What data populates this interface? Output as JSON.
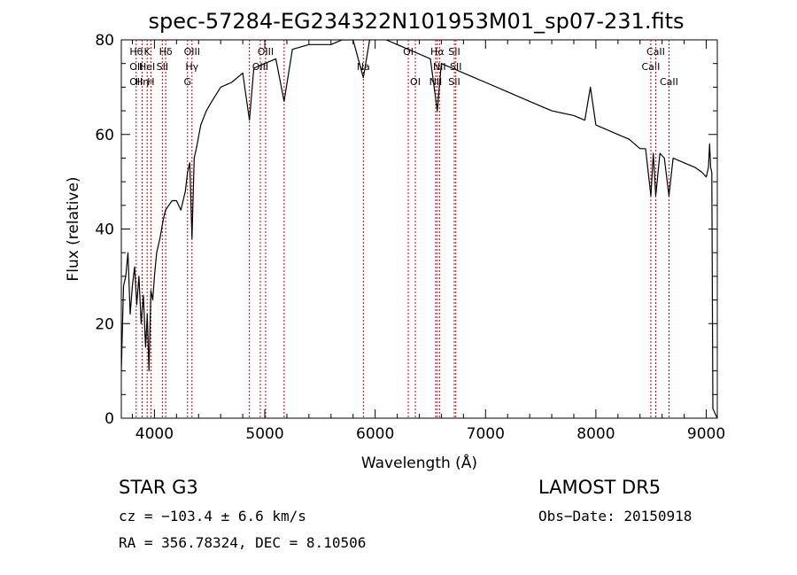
{
  "chart_data": {
    "type": "line",
    "title": "spec-57284-EG234322N101953M01_sp07-231.fits",
    "xlabel": "Wavelength (Å)",
    "ylabel": "Flux (relative)",
    "xlim": [
      3700,
      9100
    ],
    "ylim": [
      0,
      80
    ],
    "xticks": [
      4000,
      5000,
      6000,
      7000,
      8000,
      9000
    ],
    "yticks": [
      0,
      20,
      40,
      60,
      80
    ],
    "grid": false,
    "line_color": "#000000",
    "marker_color": "#cc0000",
    "series": [
      {
        "x": [
          3700,
          3720,
          3740,
          3760,
          3780,
          3800,
          3820,
          3840,
          3860,
          3880,
          3900,
          3920,
          3935,
          3950,
          3968,
          3985,
          4000,
          4020,
          4050,
          4080,
          4100,
          4130,
          4160,
          4200,
          4240,
          4280,
          4300,
          4320,
          4340,
          4360,
          4380,
          4420,
          4470,
          4520,
          4600,
          4700,
          4800,
          4861,
          4900,
          5000,
          5100,
          5175,
          5250,
          5400,
          5500,
          5600,
          5700,
          5800,
          5893,
          5950,
          6000,
          6100,
          6200,
          6300,
          6400,
          6500,
          6563,
          6600,
          6700,
          6800,
          6900,
          7000,
          7200,
          7400,
          7600,
          7800,
          7900,
          7950,
          8000,
          8100,
          8200,
          8300,
          8400,
          8450,
          8498,
          8520,
          8542,
          8580,
          8620,
          8662,
          8700,
          8800,
          8900,
          8960,
          9000,
          9020,
          9030,
          9040,
          9050,
          9060,
          9080,
          9100
        ],
        "y": [
          10,
          28,
          30,
          35,
          22,
          28,
          32,
          24,
          30,
          20,
          26,
          15,
          22,
          10,
          27,
          25,
          30,
          35,
          38,
          42,
          44,
          45,
          46,
          46,
          44,
          48,
          52,
          54,
          38,
          55,
          57,
          62,
          65,
          67,
          70,
          71,
          73,
          63,
          74,
          75,
          76,
          67,
          78,
          79,
          79,
          79,
          80,
          80,
          72,
          80,
          81,
          80,
          79,
          78,
          77,
          76,
          65,
          75,
          74,
          73,
          72,
          71,
          69,
          67,
          65,
          64,
          63,
          70,
          62,
          61,
          60,
          59,
          57,
          57,
          47,
          56,
          47,
          56,
          55,
          47,
          55,
          54,
          53,
          52,
          51,
          53,
          58,
          53,
          52,
          2,
          1,
          0
        ]
      }
    ],
    "line_markers": [
      {
        "x": 3835,
        "labels": [
          "Hθ",
          "OII",
          "OII"
        ]
      },
      {
        "x": 3889,
        "labels": [
          "",
          "",
          "Hη"
        ]
      },
      {
        "x": 3934,
        "labels": [
          "K",
          "HeI",
          ""
        ]
      },
      {
        "x": 3968,
        "labels": [
          "",
          "",
          "H"
        ]
      },
      {
        "x": 4072,
        "labels": [
          "",
          "SII",
          ""
        ]
      },
      {
        "x": 4102,
        "labels": [
          "Hδ",
          "",
          ""
        ]
      },
      {
        "x": 4300,
        "labels": [
          "",
          "",
          "G"
        ]
      },
      {
        "x": 4340,
        "labels": [
          "OIII",
          "Hγ",
          ""
        ]
      },
      {
        "x": 4861,
        "labels": [
          "",
          "",
          ""
        ]
      },
      {
        "x": 4959,
        "labels": [
          "",
          "OIII",
          ""
        ]
      },
      {
        "x": 5007,
        "labels": [
          "OIII",
          "",
          ""
        ]
      },
      {
        "x": 5175,
        "labels": [
          "",
          "",
          ""
        ]
      },
      {
        "x": 5893,
        "labels": [
          "",
          "Na",
          ""
        ]
      },
      {
        "x": 6300,
        "labels": [
          "OI",
          "",
          ""
        ]
      },
      {
        "x": 6364,
        "labels": [
          "",
          "",
          "OI"
        ]
      },
      {
        "x": 6548,
        "labels": [
          "",
          "",
          "NII"
        ]
      },
      {
        "x": 6563,
        "labels": [
          "Hα",
          "",
          ""
        ]
      },
      {
        "x": 6583,
        "labels": [
          "",
          "NII",
          ""
        ]
      },
      {
        "x": 6717,
        "labels": [
          "SII",
          "",
          "SII"
        ]
      },
      {
        "x": 6731,
        "labels": [
          "",
          "SII",
          ""
        ]
      },
      {
        "x": 8498,
        "labels": [
          "",
          "CaII",
          ""
        ]
      },
      {
        "x": 8542,
        "labels": [
          "CaII",
          "",
          ""
        ]
      },
      {
        "x": 8662,
        "labels": [
          "",
          "",
          "CaII"
        ]
      }
    ]
  },
  "info": {
    "object_line": "STAR     G3",
    "cz_line": "cz = −103.4 ± 6.6 km/s",
    "radec_line": "RA = 356.78324, DEC =   8.10506",
    "survey_line": "LAMOST  DR5",
    "date_line": "Obs−Date: 20150918"
  }
}
